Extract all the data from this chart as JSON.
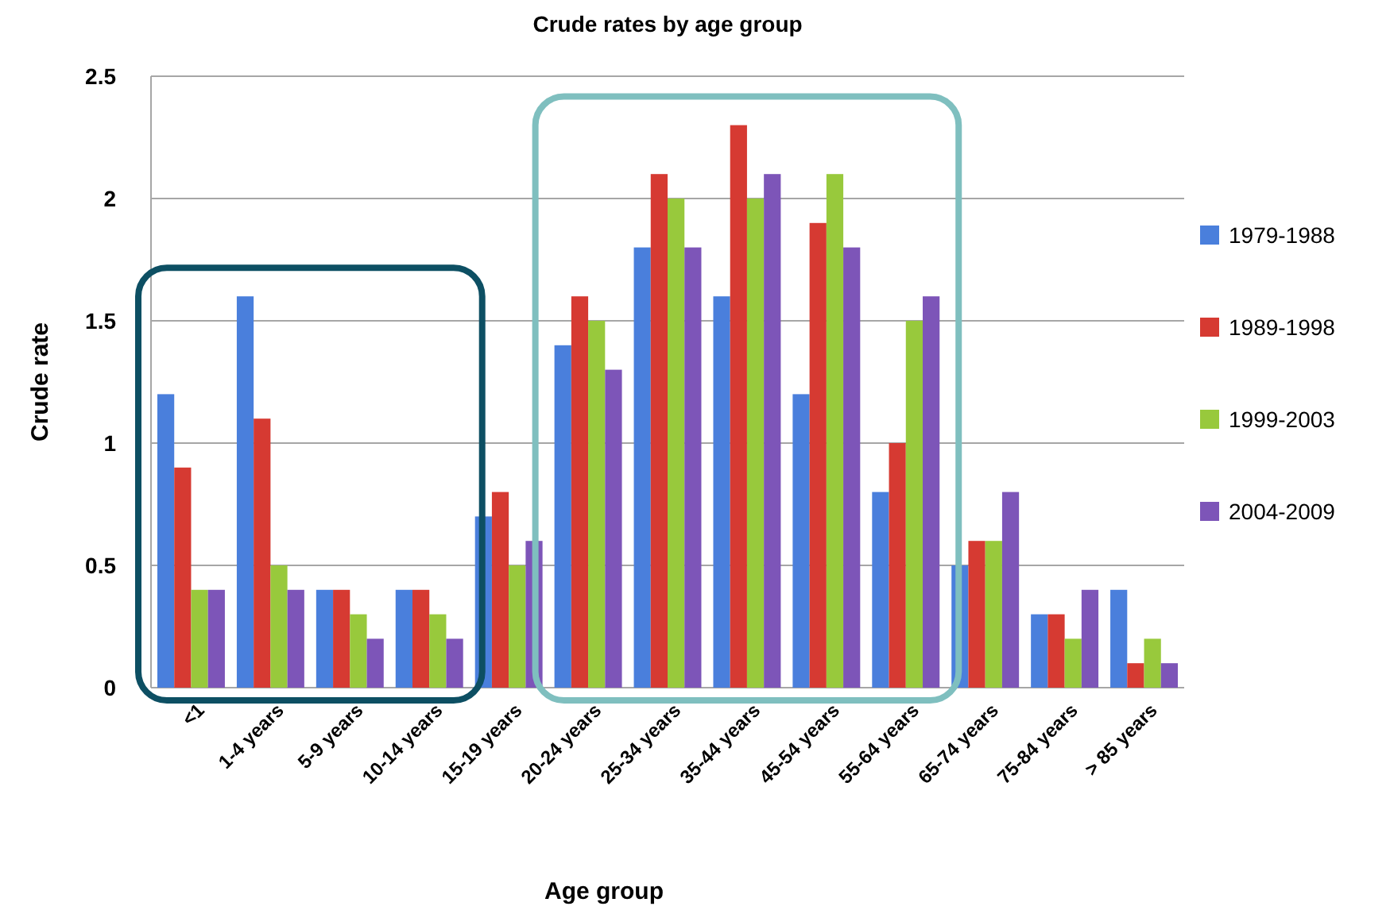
{
  "chart_data": {
    "type": "bar",
    "title": "Crude rates by age group",
    "xlabel": "Age group",
    "ylabel": "Crude rate",
    "categories": [
      "<1",
      "1-4 years",
      "5-9 years",
      "10-14 years",
      "15-19 years",
      "20-24 years",
      "25-34 years",
      "35-44 years",
      "45-54 years",
      "55-64 years",
      "65-74 years",
      "75-84 years",
      "> 85 years"
    ],
    "series": [
      {
        "name": "1979-1988",
        "color": "#4a7fdc",
        "values": [
          1.2,
          1.6,
          0.4,
          0.4,
          0.7,
          1.4,
          1.8,
          1.6,
          1.2,
          0.8,
          0.5,
          0.3,
          0.4
        ]
      },
      {
        "name": "1989-1998",
        "color": "#d63a32",
        "values": [
          0.9,
          1.1,
          0.4,
          0.4,
          0.8,
          1.6,
          2.1,
          2.3,
          1.9,
          1.0,
          0.6,
          0.3,
          0.1
        ]
      },
      {
        "name": "1999-2003",
        "color": "#98c93c",
        "values": [
          0.4,
          0.5,
          0.3,
          0.3,
          0.5,
          1.5,
          2.0,
          2.0,
          2.1,
          1.5,
          0.6,
          0.2,
          0.2
        ]
      },
      {
        "name": "2004-2009",
        "color": "#7d55b8",
        "values": [
          0.4,
          0.4,
          0.2,
          0.2,
          0.6,
          1.3,
          1.8,
          2.1,
          1.8,
          1.6,
          0.8,
          0.4,
          0.1
        ]
      }
    ],
    "ylim": [
      0,
      2.5
    ],
    "yticks": [
      0,
      0.5,
      1,
      1.5,
      2,
      2.5
    ],
    "grid": "y",
    "legend": "right"
  }
}
